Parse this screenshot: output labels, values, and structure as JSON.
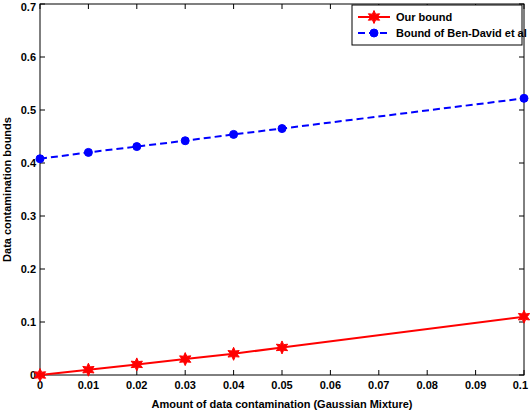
{
  "chart_data": {
    "type": "line",
    "x_label": "Amount of data contamination (Gaussian Mixture)",
    "y_label": "Data contamination bounds",
    "x": [
      0,
      0.01,
      0.02,
      0.03,
      0.04,
      0.05,
      0.1
    ],
    "series": [
      {
        "name": "Our bound",
        "color": "#ff0000",
        "marker": "star",
        "line_style": "solid",
        "values": [
          0,
          0.01,
          0.02,
          0.03,
          0.04,
          0.052,
          0.11
        ]
      },
      {
        "name": "Bound of Ben-David et al",
        "color": "#0000ff",
        "marker": "circle",
        "line_style": "dashed",
        "values": [
          0.408,
          0.42,
          0.431,
          0.442,
          0.454,
          0.465,
          0.522
        ]
      }
    ],
    "xlim": [
      0,
      0.1
    ],
    "xticks": [
      0,
      0.01,
      0.02,
      0.03,
      0.04,
      0.05,
      0.06,
      0.07,
      0.08,
      0.09,
      0.1
    ],
    "ylim": [
      0,
      0.7
    ],
    "yticks": [
      0,
      0.1,
      0.2,
      0.3,
      0.4,
      0.5,
      0.6,
      0.7
    ],
    "grid": false,
    "legend": "upper right"
  }
}
